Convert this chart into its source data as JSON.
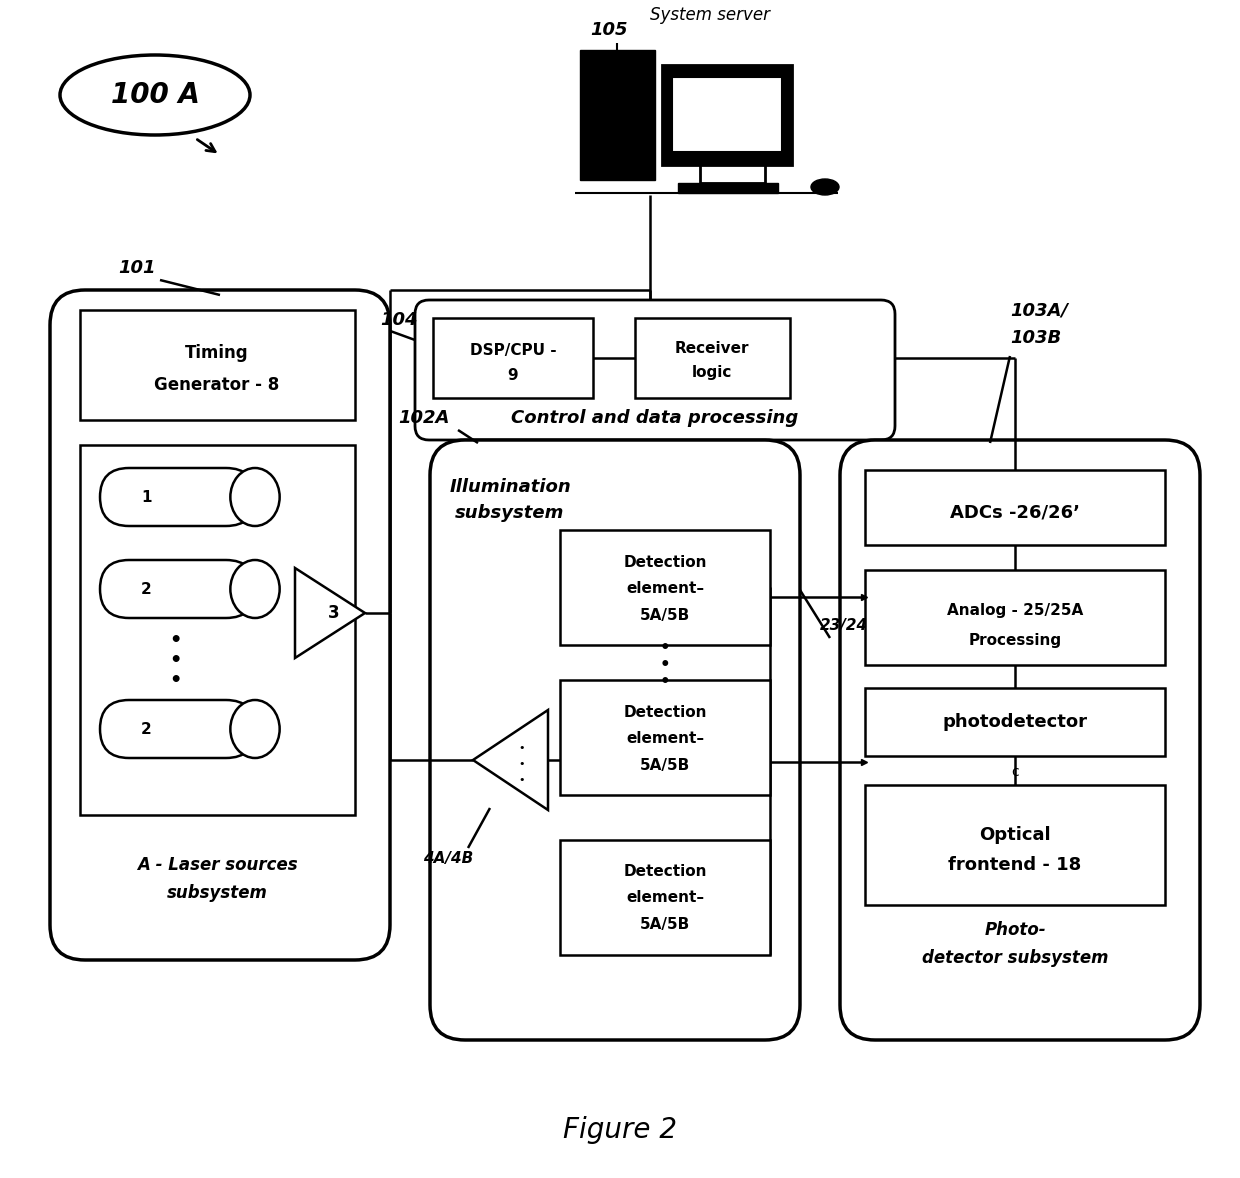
{
  "bg": "#ffffff",
  "lc": "#000000",
  "fig_caption": "Figure 2",
  "label_100A": "100 A",
  "label_101": "101",
  "label_102A": "102A",
  "label_103A": "103A/",
  "label_103B": "103B",
  "label_104": "104",
  "label_105": "105",
  "label_4A4B": "4A/4B",
  "label_23_24": "23/24",
  "timing_gen_1": "Timing",
  "timing_gen_2": "Generator - 8",
  "laser_sub_1": "A - Laser sources",
  "laser_sub_2": "subsystem",
  "illum_1": "Illumination",
  "illum_2": "subsystem",
  "det_elem_1": "Detection",
  "det_elem_2": "element–",
  "det_elem_3": "5A/5B",
  "dsp_1": "DSP/CPU -",
  "dsp_2": "9",
  "recv_1": "Receiver",
  "recv_2": "logic",
  "ctrl": "Control and data processing",
  "adcs": "ADCs -26/26’",
  "analog_1": "Analog - 25/25A",
  "analog_2": "Processing",
  "photodet": "photodetector",
  "photodet_c": "c",
  "optical_1": "Optical",
  "optical_2": "frontend - 18",
  "photo_sub_1": "Photo-",
  "photo_sub_2": "detector subsystem",
  "sys_server": "System server"
}
